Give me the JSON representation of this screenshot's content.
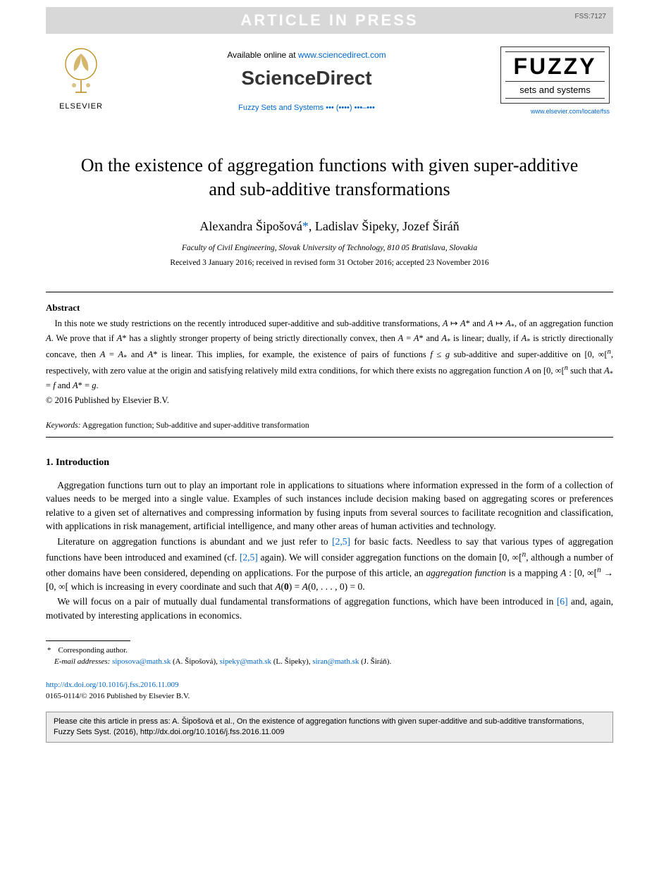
{
  "banner": {
    "text": "ARTICLE IN PRESS",
    "code": "FSS:7127",
    "bg_color": "#d8d8d8",
    "text_color": "#ffffff"
  },
  "header": {
    "elsevier_label": "ELSEVIER",
    "available_prefix": "Available online at ",
    "available_url": "www.sciencedirect.com",
    "sciencedirect": "ScienceDirect",
    "journal_ref": "Fuzzy Sets and Systems ••• (••••) •••–•••",
    "fuzzy_big": "FUZZY",
    "fuzzy_sub": "sets and systems",
    "journal_url": "www.elsevier.com/locate/fss"
  },
  "title": "On the existence of aggregation functions with given super-additive and sub-additive transformations",
  "authors_html": "Alexandra Šipošová<span class='corr-mark'>*</span>, Ladislav Šipeky, Jozef Širáň",
  "affiliation": "Faculty of Civil Engineering, Slovak University of Technology, 810 05 Bratislava, Slovakia",
  "dates": "Received 3 January 2016; received in revised form 31 October 2016; accepted 23 November 2016",
  "abstract": {
    "heading": "Abstract",
    "body_html": "In this note we study restrictions on the recently introduced super-additive and sub-additive transformations, <i>A</i> ↦ <i>A</i>* and <i>A</i> ↦ <i>A</i><sub>*</sub>, of an aggregation function <i>A</i>. We prove that if <i>A</i>* has a slightly stronger property of being strictly directionally convex, then <i>A</i> = <i>A</i>* and <i>A</i><sub>*</sub> is linear; dually, if <i>A</i><sub>*</sub> is strictly directionally concave, then <i>A</i> = <i>A</i><sub>*</sub> and <i>A</i>* is linear. This implies, for example, the existence of pairs of functions <i>f</i> ≤ <i>g</i> sub-additive and super-additive on [0, ∞[<sup><i>n</i></sup>, respectively, with zero value at the origin and satisfying relatively mild extra conditions, for which there exists no aggregation function <i>A</i> on [0, ∞[<sup><i>n</i></sup> such that <i>A</i><sub>*</sub> = <i>f</i> and <i>A</i>* = <i>g</i>.",
    "copyright": "© 2016 Published by Elsevier B.V."
  },
  "keywords": {
    "label": "Keywords:",
    "text": " Aggregation function; Sub-additive and super-additive transformation"
  },
  "section1": {
    "heading": "1. Introduction",
    "p1_html": "Aggregation functions turn out to play an important role in applications to situations where information expressed in the form of a collection of values needs to be merged into a single value. Examples of such instances include decision making based on aggregating scores or preferences relative to a given set of alternatives and compressing information by fusing inputs from several sources to facilitate recognition and classification, with applications in risk management, artificial intelligence, and many other areas of human activities and technology.",
    "p2_html": "Literature on aggregation functions is abundant and we just refer to <span class='ref-link'>[2,5]</span> for basic facts. Needless to say that various types of aggregation functions have been introduced and examined (cf. <span class='ref-link'>[2,5]</span> again). We will consider aggregation functions on the domain [0, ∞[<sup><i>n</i></sup>, although a number of other domains have been considered, depending on applications. For the purpose of this article, an <i>aggregation function</i> is a mapping <i>A</i> : [0, ∞[<sup><i>n</i></sup> → [0, ∞[ which is increasing in every coordinate and such that <i>A</i>(<b>0</b>) = <i>A</i>(0, . . . , 0) = 0.",
    "p3_html": "We will focus on a pair of mutually dual fundamental transformations of aggregation functions, which have been introduced in <span class='ref-link'>[6]</span> and, again, motivated by interesting applications in economics."
  },
  "footnote": {
    "corr": "Corresponding author.",
    "email_label": "E-mail addresses:",
    "emails_html": " <span class='email-link'>siposova@math.sk</span> (A. Šipošová), <span class='email-link'>sipeky@math.sk</span> (L. Šipeky), <span class='email-link'>siran@math.sk</span> (J. Širáň)."
  },
  "doi": {
    "url": "http://dx.doi.org/10.1016/j.fss.2016.11.009",
    "issn_line": "0165-0114/© 2016 Published by Elsevier B.V."
  },
  "citebox": "Please cite this article in press as: A. Šipošová et al., On the existence of aggregation functions with given super-additive and sub-additive transformations, Fuzzy Sets Syst. (2016), http://dx.doi.org/10.1016/j.fss.2016.11.009",
  "colors": {
    "link": "#0066cc",
    "text": "#000000",
    "banner_bg": "#d8d8d8",
    "citebox_bg": "#ececec"
  }
}
